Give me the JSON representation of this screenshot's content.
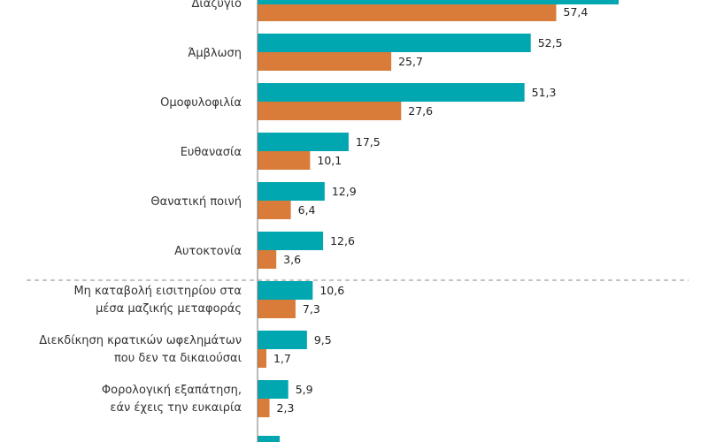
{
  "chart_data": {
    "type": "bar",
    "orientation": "horizontal",
    "categories": [
      [
        "Διαζύγιο"
      ],
      [
        "Άμβλωση"
      ],
      [
        "Ομοφυλοφιλία"
      ],
      [
        "Ευθανασία"
      ],
      [
        "Θανατική ποινή"
      ],
      [
        "Αυτοκτονία"
      ],
      [
        "Μη καταβολή εισιτηρίου στα",
        "μέσα μαζικής μεταφοράς"
      ],
      [
        "Διεκδίκηση κρατικών ωφελημάτων",
        "που δεν τα δικαιούσαι"
      ],
      [
        "Φορολογική εξαπάτηση,",
        "εάν έχεις την ευκαιρία"
      ],
      [
        ""
      ]
    ],
    "series": [
      {
        "color": "#00a6b0",
        "values": [
          null,
          52.5,
          51.3,
          17.5,
          12.9,
          12.6,
          10.6,
          9.5,
          5.9,
          null
        ],
        "labels": [
          "",
          "52,5",
          "51,3",
          "17,5",
          "12,9",
          "12,6",
          "10,6",
          "9,5",
          "5,9",
          ""
        ]
      },
      {
        "color": "#d97b39",
        "values": [
          57.4,
          25.7,
          27.6,
          10.1,
          6.4,
          3.6,
          7.3,
          1.7,
          2.3,
          null
        ],
        "labels": [
          "57,4",
          "25,7",
          "27,6",
          "10,1",
          "6,4",
          "3,6",
          "7,3",
          "1,7",
          "2,3",
          ""
        ]
      }
    ],
    "group_separator_after_index": 5,
    "grid": false,
    "legend": "none"
  }
}
